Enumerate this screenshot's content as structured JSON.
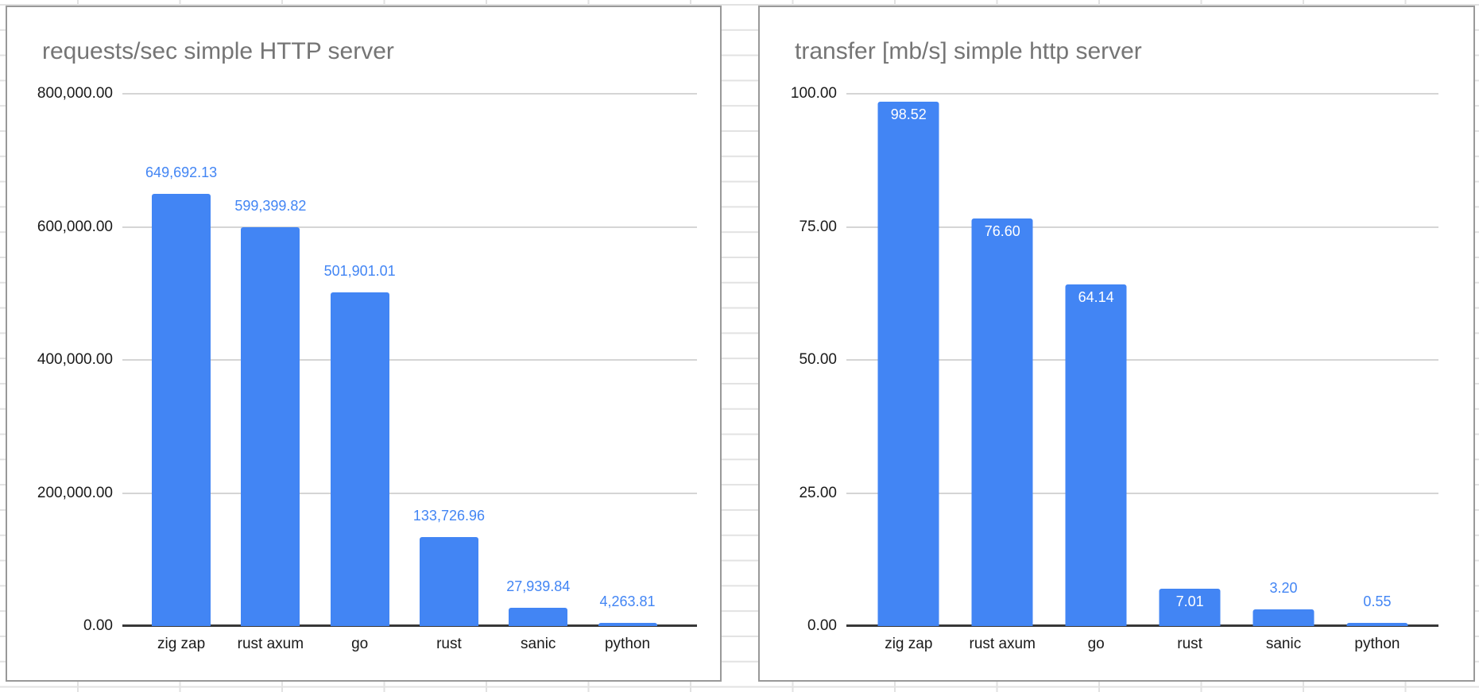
{
  "colors": {
    "bar": "#4285f4",
    "data_label_outside": "#4285f4",
    "data_label_inside": "#ffffff",
    "title": "#757575",
    "axis_text": "#1a1a1a",
    "gridline": "#d5d5d5",
    "baseline": "#383838",
    "card_border": "#999999",
    "sheet_gridline": "#e2e2e2"
  },
  "chart_data": [
    {
      "type": "bar",
      "title": "requests/sec simple HTTP server",
      "categories": [
        "zig zap",
        "rust axum",
        "go",
        "rust",
        "sanic",
        "python"
      ],
      "values": [
        649692.13,
        599399.82,
        501901.01,
        133726.96,
        27939.84,
        4263.81
      ],
      "value_labels": [
        "649,692.13",
        "599,399.82",
        "501,901.01",
        "133,726.96",
        "27,939.84",
        "4,263.81"
      ],
      "value_label_placement": [
        "above",
        "above",
        "above",
        "above",
        "above",
        "above"
      ],
      "xlabel": "",
      "ylabel": "",
      "ylim": [
        0,
        800000
      ],
      "y_tick_labels": [
        "800,000.00",
        "600,000.00",
        "400,000.00",
        "200,000.00",
        "0.00"
      ],
      "y_tick_values": [
        800000,
        600000,
        400000,
        200000,
        0
      ],
      "grid": true,
      "legend": "none"
    },
    {
      "type": "bar",
      "title": "transfer [mb/s] simple http server",
      "categories": [
        "zig zap",
        "rust axum",
        "go",
        "rust",
        "sanic",
        "python"
      ],
      "values": [
        98.52,
        76.6,
        64.14,
        7.01,
        3.2,
        0.55
      ],
      "value_labels": [
        "98.52",
        "76.60",
        "64.14",
        "7.01",
        "3.20",
        "0.55"
      ],
      "value_label_placement": [
        "inside",
        "inside",
        "inside",
        "inside",
        "above",
        "above"
      ],
      "xlabel": "",
      "ylabel": "",
      "ylim": [
        0,
        100
      ],
      "y_tick_labels": [
        "100.00",
        "75.00",
        "50.00",
        "25.00",
        "0.00"
      ],
      "y_tick_values": [
        100,
        75,
        50,
        25,
        0
      ],
      "grid": true,
      "legend": "none"
    }
  ]
}
